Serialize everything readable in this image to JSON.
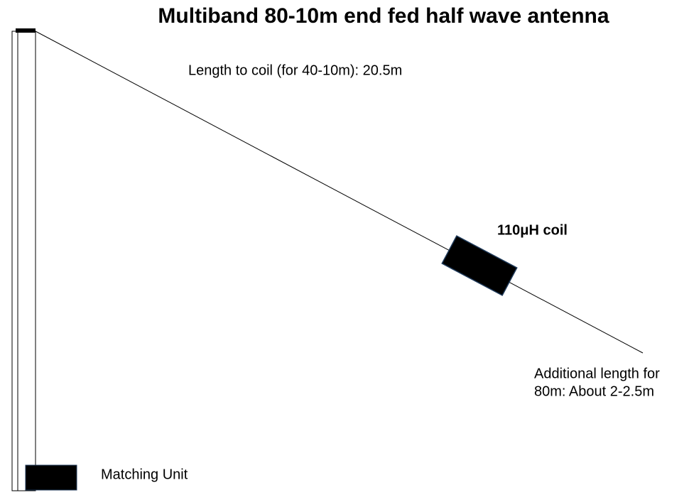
{
  "title": "Multiband 80-10m end fed half wave antenna",
  "labels": {
    "wire_length": "Length to coil (for 40-10m): 20.5m",
    "coil": "110μH coil",
    "additional_length": [
      "Additional length for",
      "80m: About 2-2.5m"
    ],
    "matching_unit": "Matching Unit"
  }
}
